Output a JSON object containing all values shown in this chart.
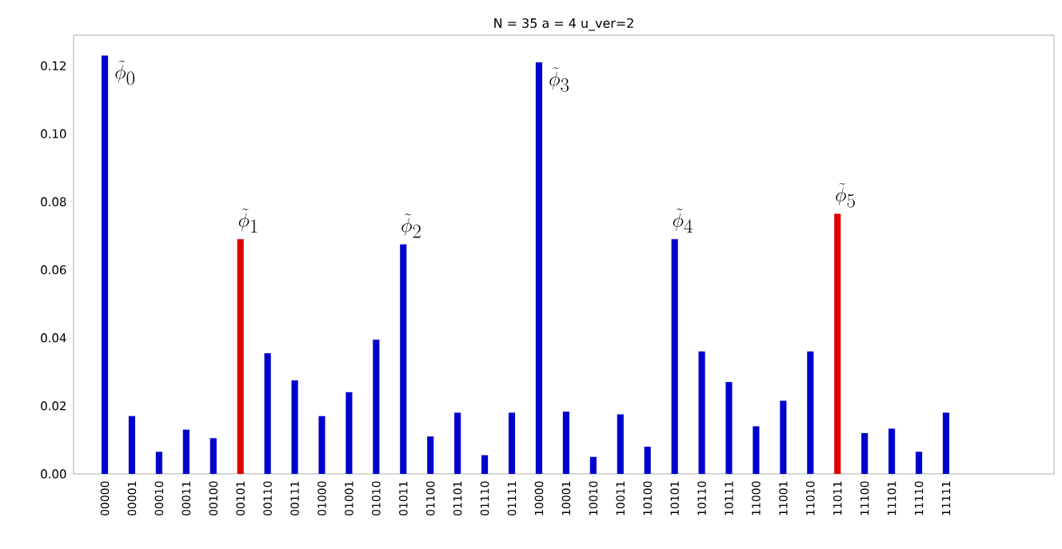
{
  "chart_data": {
    "type": "bar",
    "title": "N = 35 a = 4 u_ver=2",
    "categories": [
      "00000",
      "00001",
      "00010",
      "00011",
      "00100",
      "00101",
      "00110",
      "00111",
      "01000",
      "01001",
      "01010",
      "01011",
      "01100",
      "01101",
      "01110",
      "01111",
      "10000",
      "10001",
      "10010",
      "10011",
      "10100",
      "10101",
      "10110",
      "10111",
      "11000",
      "11001",
      "11010",
      "11011",
      "11100",
      "11101",
      "11110",
      "11111"
    ],
    "values": [
      0.123,
      0.017,
      0.0065,
      0.013,
      0.0105,
      0.069,
      0.0355,
      0.0275,
      0.017,
      0.024,
      0.0395,
      0.0675,
      0.011,
      0.018,
      0.0055,
      0.018,
      0.121,
      0.0183,
      0.005,
      0.0175,
      0.008,
      0.069,
      0.036,
      0.027,
      0.014,
      0.0215,
      0.036,
      0.0765,
      0.012,
      0.0133,
      0.0065,
      0.018
    ],
    "colors": [
      "#0000cc",
      "#0000cc",
      "#0000cc",
      "#0000cc",
      "#0000cc",
      "#dd0000",
      "#0000cc",
      "#0000cc",
      "#0000cc",
      "#0000cc",
      "#0000cc",
      "#0000cc",
      "#0000cc",
      "#0000cc",
      "#0000cc",
      "#0000cc",
      "#0000cc",
      "#0000cc",
      "#0000cc",
      "#0000cc",
      "#0000cc",
      "#0000cc",
      "#0000cc",
      "#0000cc",
      "#0000cc",
      "#0000cc",
      "#0000cc",
      "#dd0000",
      "#0000cc",
      "#0000cc",
      "#0000cc",
      "#0000cc"
    ],
    "ylim": [
      0,
      0.129
    ],
    "yticks": [
      {
        "value": 0,
        "label": "0.00"
      },
      {
        "value": 0.02,
        "label": "0.02"
      },
      {
        "value": 0.04,
        "label": "0.04"
      },
      {
        "value": 0.06,
        "label": "0.06"
      },
      {
        "value": 0.08,
        "label": "0.08"
      },
      {
        "value": 0.1,
        "label": "0.10"
      },
      {
        "value": 0.12,
        "label": "0.12"
      }
    ],
    "annotations": [
      {
        "text": "\\tilde{\\phi}_0",
        "x": "00000",
        "y": 0.123
      },
      {
        "text": "\\tilde{\\phi}_1",
        "x": "00101",
        "y": 0.069
      },
      {
        "text": "\\tilde{\\phi}_2",
        "x": "01011",
        "y": 0.0675
      },
      {
        "text": "\\tilde{\\phi}_3",
        "x": "10000",
        "y": 0.121
      },
      {
        "text": "\\tilde{\\phi}_4",
        "x": "10101",
        "y": 0.069
      },
      {
        "text": "\\tilde{\\phi}_5",
        "x": "11011",
        "y": 0.0765
      }
    ],
    "grid": false
  }
}
